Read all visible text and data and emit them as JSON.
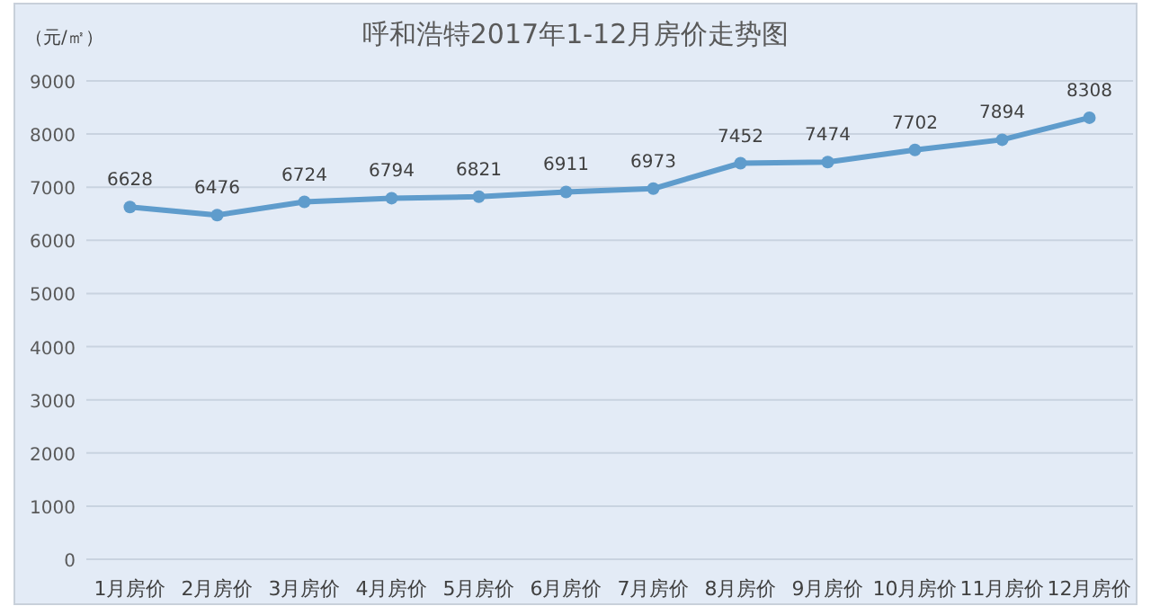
{
  "chart_data": {
    "type": "line",
    "title": "呼和浩特2017年1-12月房价走势图",
    "ylabel": "（元/㎡）",
    "categories": [
      "1月房价",
      "2月房价",
      "3月房价",
      "4月房价",
      "5月房价",
      "6月房价",
      "7月房价",
      "8月房价",
      "9月房价",
      "10月房价",
      "11月房价",
      "12月房价"
    ],
    "series": [
      {
        "color": "#5f9ccc",
        "values": [
          6628,
          6476,
          6724,
          6794,
          6821,
          6911,
          6973,
          7452,
          7474,
          7702,
          7894,
          8308
        ]
      }
    ],
    "ylim": [
      0,
      9000
    ],
    "yticks": [
      0,
      1000,
      2000,
      3000,
      4000,
      5000,
      6000,
      7000,
      8000,
      9000
    ],
    "grid": "y",
    "marker": "circle",
    "line_style": "solid",
    "data_labels": true
  }
}
